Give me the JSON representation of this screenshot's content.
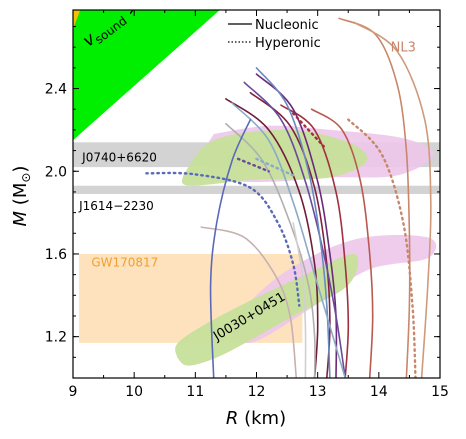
{
  "chart_data": {
    "type": "line",
    "xlabel_symbol": "R",
    "xlabel_unit": " (km)",
    "ylabel_symbol": "M",
    "ylabel_unit": " (M",
    "ylabel_sun": "⊙",
    "ylabel_close": ")",
    "xlim": [
      9,
      15
    ],
    "ylim": [
      1.0,
      2.78
    ],
    "xticks": [
      9,
      10,
      11,
      12,
      13,
      14,
      15
    ],
    "yticks": [
      1.2,
      1.6,
      2.0,
      2.4
    ],
    "xtick_labels": [
      "9",
      "10",
      "11",
      "12",
      "13",
      "14",
      "15"
    ],
    "ytick_labels": [
      "1.2",
      "1.6",
      "2.0",
      "2.4"
    ],
    "legend": {
      "position": "top-center",
      "entries": [
        {
          "label": "Nucleonic",
          "style": "solid"
        },
        {
          "label": "Hyperonic",
          "style": "dotted"
        }
      ]
    },
    "colors": {
      "causality": "#00ee00",
      "causality_corner": "#f5c000",
      "band": "#d3d3d3",
      "gw_box": "#fde2bd",
      "gw_text": "#f0a030",
      "green_contour": "#c6e09a",
      "pink_contour": "#edc7ea",
      "nl3": "#c8866a"
    },
    "annotations": {
      "causality_label": "v",
      "causality_sub": "sound",
      "causality_rel": " > c",
      "j0740": "J0740+6620",
      "j1614": "J1614−2230",
      "gw": "GW170817",
      "j0030": "J0030+0451",
      "nl3": "NL3"
    },
    "bands": [
      {
        "name": "J0740+6620",
        "mass_range": [
          2.02,
          2.14
        ],
        "r_range": [
          9,
          15
        ]
      },
      {
        "name": "J1614−2230",
        "mass_range": [
          1.89,
          1.93
        ],
        "r_range": [
          9,
          15
        ]
      }
    ],
    "gw170817_region": {
      "r_range": [
        9.1,
        12.75
      ],
      "mass_range": [
        1.17,
        1.6
      ]
    },
    "causality_region": [
      [
        9,
        2.15
      ],
      [
        11.4,
        2.78
      ],
      [
        9,
        2.78
      ]
    ],
    "series": [
      {
        "type": "solid",
        "color": "#c8866a",
        "points": [
          [
            13.35,
            2.74
          ],
          [
            13.95,
            2.66
          ],
          [
            14.3,
            2.42
          ],
          [
            14.45,
            2.1
          ],
          [
            14.5,
            1.7
          ],
          [
            14.5,
            1.35
          ],
          [
            14.45,
            1.0
          ]
        ]
      },
      {
        "type": "solid",
        "color": "#d09a7a",
        "points": [
          [
            13.6,
            2.72
          ],
          [
            14.3,
            2.58
          ],
          [
            14.75,
            2.25
          ],
          [
            14.85,
            1.85
          ],
          [
            14.8,
            1.45
          ],
          [
            14.7,
            1.0
          ]
        ]
      },
      {
        "type": "solid",
        "color": "#b85a50",
        "points": [
          [
            12.9,
            2.3
          ],
          [
            13.4,
            2.2
          ],
          [
            13.7,
            1.95
          ],
          [
            13.85,
            1.6
          ],
          [
            13.9,
            1.3
          ],
          [
            13.85,
            1.0
          ]
        ]
      },
      {
        "type": "solid",
        "color": "#a03040",
        "points": [
          [
            12.4,
            2.32
          ],
          [
            12.95,
            2.2
          ],
          [
            13.3,
            1.9
          ],
          [
            13.45,
            1.55
          ],
          [
            13.5,
            1.25
          ],
          [
            13.45,
            1.0
          ]
        ]
      },
      {
        "type": "solid",
        "color": "#80203e",
        "points": [
          [
            11.9,
            2.38
          ],
          [
            12.55,
            2.22
          ],
          [
            12.95,
            1.92
          ],
          [
            13.15,
            1.55
          ],
          [
            13.2,
            1.25
          ],
          [
            13.15,
            1.0
          ]
        ]
      },
      {
        "type": "solid",
        "color": "#701c38",
        "points": [
          [
            11.5,
            2.35
          ],
          [
            12.2,
            2.2
          ],
          [
            12.7,
            1.9
          ],
          [
            12.95,
            1.55
          ],
          [
            13.0,
            1.25
          ],
          [
            12.95,
            1.0
          ]
        ]
      },
      {
        "type": "solid",
        "color": "#6a2a7a",
        "points": [
          [
            12.0,
            2.47
          ],
          [
            12.6,
            2.3
          ],
          [
            13.0,
            1.95
          ],
          [
            13.2,
            1.6
          ],
          [
            13.3,
            1.3
          ],
          [
            13.3,
            1.0
          ]
        ]
      },
      {
        "type": "solid",
        "color": "#6a4a9a",
        "points": [
          [
            11.8,
            2.43
          ],
          [
            12.4,
            2.25
          ],
          [
            12.8,
            1.95
          ],
          [
            13.1,
            1.6
          ],
          [
            13.3,
            1.3
          ],
          [
            13.45,
            1.0
          ]
        ]
      },
      {
        "type": "solid",
        "color": "#6a8ac0",
        "points": [
          [
            12.0,
            2.5
          ],
          [
            12.5,
            2.32
          ],
          [
            12.85,
            2.0
          ],
          [
            13.05,
            1.65
          ],
          [
            13.15,
            1.35
          ],
          [
            13.2,
            1.0
          ]
        ]
      },
      {
        "type": "solid",
        "color": "#8aaac8",
        "points": [
          [
            11.6,
            2.33
          ],
          [
            12.2,
            2.15
          ],
          [
            12.6,
            1.85
          ],
          [
            12.95,
            1.5
          ],
          [
            13.25,
            1.2
          ],
          [
            13.45,
            1.0
          ]
        ]
      },
      {
        "type": "solid",
        "color": "#b0b0b0",
        "points": [
          [
            11.5,
            2.23
          ],
          [
            12.1,
            2.05
          ],
          [
            12.55,
            1.75
          ],
          [
            12.85,
            1.45
          ],
          [
            12.95,
            1.2
          ],
          [
            12.95,
            1.0
          ]
        ]
      },
      {
        "type": "solid",
        "color": "#c8b0b0",
        "points": [
          [
            11.1,
            1.73
          ],
          [
            11.8,
            1.68
          ],
          [
            12.3,
            1.5
          ],
          [
            12.55,
            1.3
          ],
          [
            12.65,
            1.0
          ]
        ]
      },
      {
        "type": "solid",
        "color": "#5a6ab8",
        "points": [
          [
            11.9,
            2.25
          ],
          [
            11.6,
            2.05
          ],
          [
            11.35,
            1.75
          ],
          [
            11.25,
            1.45
          ],
          [
            11.3,
            1.0
          ]
        ]
      },
      {
        "type": "solid",
        "color": "#d0d0d0",
        "points": [
          [
            12.6,
            1.75
          ],
          [
            12.75,
            1.5
          ],
          [
            12.8,
            1.25
          ],
          [
            12.8,
            1.0
          ]
        ]
      },
      {
        "type": "dotted",
        "color": "#c8866a",
        "points": [
          [
            13.5,
            2.25
          ],
          [
            14.05,
            2.08
          ],
          [
            14.4,
            1.75
          ],
          [
            14.55,
            1.35
          ],
          [
            14.6,
            1.0
          ]
        ]
      },
      {
        "type": "dotted",
        "color": "#5a6ab8",
        "points": [
          [
            10.2,
            1.99
          ],
          [
            11.0,
            1.985
          ],
          [
            11.9,
            1.92
          ],
          [
            12.35,
            1.75
          ],
          [
            12.6,
            1.55
          ],
          [
            12.7,
            1.35
          ]
        ]
      },
      {
        "type": "dotted",
        "color": "#a03040",
        "points": [
          [
            12.6,
            2.28
          ],
          [
            13.1,
            2.12
          ]
        ]
      },
      {
        "type": "dotted",
        "color": "#8aaac8",
        "points": [
          [
            12.0,
            2.06
          ],
          [
            12.6,
            1.98
          ]
        ]
      },
      {
        "type": "dotted",
        "color": "#6a4a9a",
        "points": [
          [
            11.7,
            2.06
          ],
          [
            12.2,
            2.0
          ]
        ]
      }
    ]
  }
}
